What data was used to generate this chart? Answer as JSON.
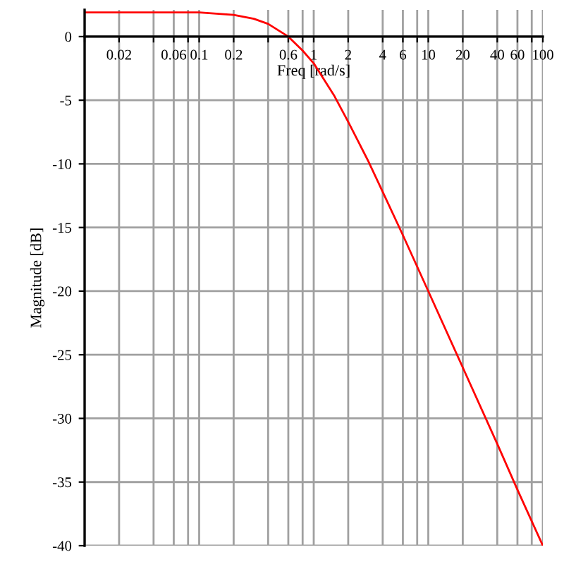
{
  "chart_data": {
    "type": "line",
    "xlabel": "Freq [rad/s]",
    "ylabel": "Magnitude [dB]",
    "log": "x",
    "x": [
      0.01,
      0.1,
      0.2,
      0.3,
      0.4,
      0.6,
      0.8,
      1,
      1.5,
      2,
      3,
      4,
      6,
      10,
      20,
      40,
      60,
      100
    ],
    "series": [
      {
        "color": "#ff0000",
        "values": [
          1.9,
          1.9,
          1.7,
          1.4,
          1.0,
          0.0,
          -1.1,
          -2.1,
          -4.6,
          -6.7,
          -9.8,
          -12.2,
          -15.6,
          -20.0,
          -26.0,
          -32.0,
          -35.6,
          -40.0
        ]
      }
    ],
    "xlim": [
      0.01,
      100
    ],
    "ylim": [
      -40,
      2.1
    ],
    "xticks": [
      {
        "value": 0.01,
        "label": null
      },
      0.02,
      {
        "value": 0.04,
        "label": null
      },
      0.06,
      {
        "value": 0.08,
        "label": null
      },
      0.1,
      0.2,
      {
        "value": 0.4,
        "label": null
      },
      0.6,
      {
        "value": 0.8,
        "label": null
      },
      1,
      2,
      4,
      6,
      {
        "value": 8,
        "label": null
      },
      10,
      20,
      40,
      60,
      {
        "value": 80,
        "label": null
      },
      100
    ],
    "yticks": [
      -40,
      -35,
      -30,
      -25,
      -20,
      -15,
      -10,
      -5,
      0
    ],
    "grid": true,
    "legend": false,
    "marker": "none",
    "line_style": "solid"
  }
}
